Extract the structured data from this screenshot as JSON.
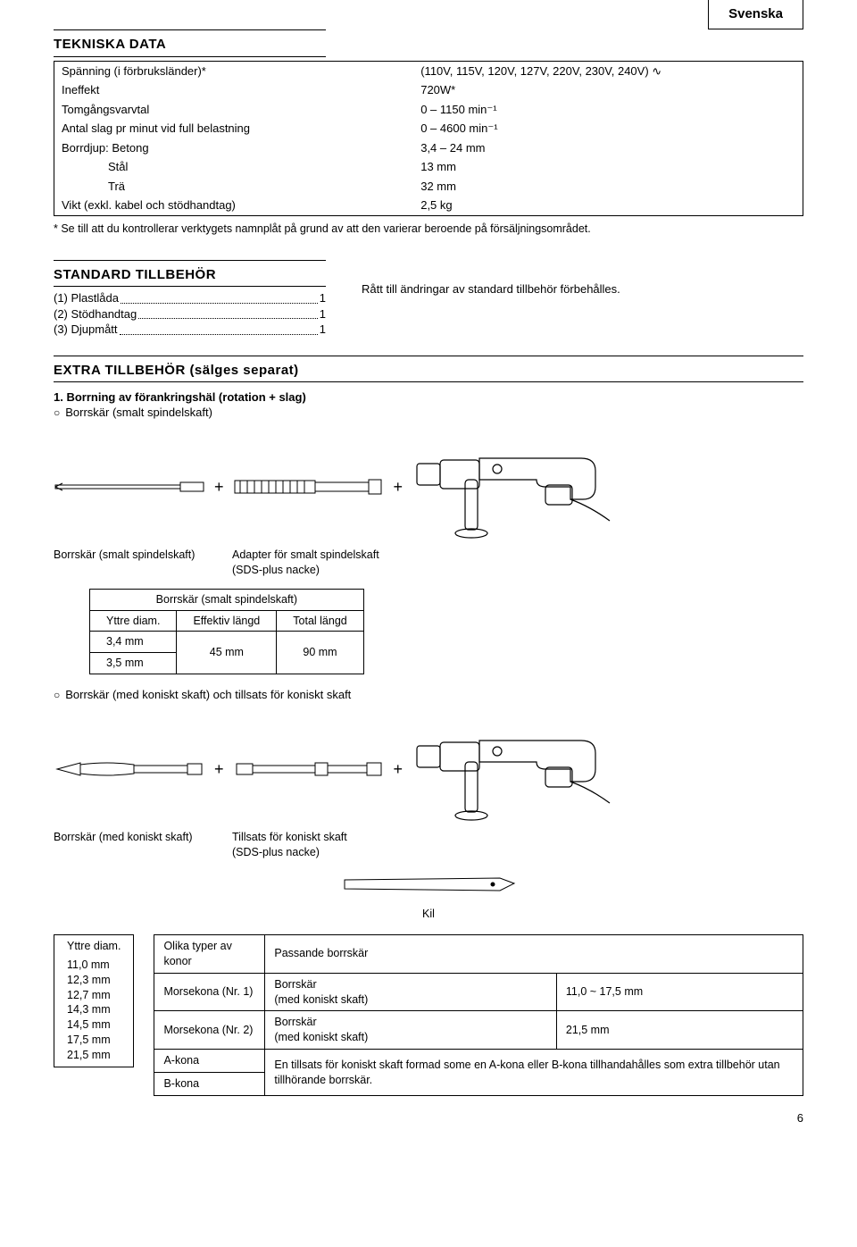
{
  "lang_label": "Svenska",
  "tekniska": {
    "heading": "TEKNISKA DATA",
    "rows": [
      {
        "label": "Spänning (i förbruksländer)*",
        "value": "(110V, 115V, 120V, 127V, 220V, 230V, 240V) ∿"
      },
      {
        "label": "Ineffekt",
        "value": "720W*"
      },
      {
        "label": "Tomgångsvarvtal",
        "value": "0 – 1150 min⁻¹"
      },
      {
        "label": "Antal slag pr minut vid full belastning",
        "value": "0 – 4600 min⁻¹"
      },
      {
        "label": "Borrdjup: Betong",
        "value": "3,4 – 24 mm"
      },
      {
        "label": "Stål",
        "value": "13 mm",
        "indent": true
      },
      {
        "label": "Trä",
        "value": "32 mm",
        "indent": true
      },
      {
        "label": "Vikt (exkl. kabel och stödhandtag)",
        "value": "2,5 kg"
      }
    ],
    "footnote": "* Se till att du kontrollerar verktygets namnplåt på grund av att den varierar beroende på försäljningsområdet."
  },
  "standard": {
    "heading": "STANDARD TILLBEHÖR",
    "items": [
      {
        "label": "(1) Plastlåda",
        "qty": "1"
      },
      {
        "label": "(2) Stödhandtag",
        "qty": "1"
      },
      {
        "label": "(3) Djupmått",
        "qty": "1"
      }
    ],
    "note": "Rått till ändringar av standard tillbehör förbehålles."
  },
  "extra": {
    "heading": "EXTRA TILLBEHÖR (sälges separat)",
    "item1_title": "1.  Borrning av förankringshäl (rotation + slag)",
    "item1_sub": "Borrskär (smalt spindelskaft)",
    "caption_bit": "Borrskär (smalt spindelskaft)",
    "caption_adapter": "Adapter för smalt spindelskaft\n(SDS-plus nacke)",
    "small_table": {
      "header": "Borrskär (smalt spindelskaft)",
      "cols": [
        "Yttre diam.",
        "Effektiv längd",
        "Total längd"
      ],
      "rows": [
        [
          "3,4 mm",
          "45 mm",
          "90 mm"
        ],
        [
          "3,5 mm",
          "",
          ""
        ]
      ]
    },
    "item2_sub": "Borrskär (med koniskt skaft) och tillsats för koniskt skaft",
    "caption_taper_bit": "Borrskär (med koniskt skaft)",
    "caption_taper_adapter": "Tillsats för koniskt skaft\n(SDS-plus nacke)",
    "kil_label": "Kil"
  },
  "outer_diam": {
    "header": "Yttre diam.",
    "values": [
      "11,0 mm",
      "12,3 mm",
      "12,7 mm",
      "14,3 mm",
      "14,5 mm",
      "17,5 mm",
      "21,5 mm"
    ]
  },
  "taper_table": {
    "cols": [
      "Olika typer av konor",
      "Passande borskär",
      ""
    ],
    "rows": [
      {
        "c1": "Morsekona (Nr. 1)",
        "c2": "Borrskär\n(med koniskt skaft)",
        "c3": "11,0 ~ 17,5 mm"
      },
      {
        "c1": "Morsekona (Nr. 2)",
        "c2": "Borrskär\n(med koniskt skaft)",
        "c3": "21,5 mm"
      },
      {
        "c1": "A-kona",
        "c2span": "En tillsats för koniskt skaft formad some en A-kona eller B-kona tillhandahålles som extra tillbehör utan tillhörande borrskär."
      },
      {
        "c1": "B-kona"
      }
    ]
  },
  "page_number": "6"
}
